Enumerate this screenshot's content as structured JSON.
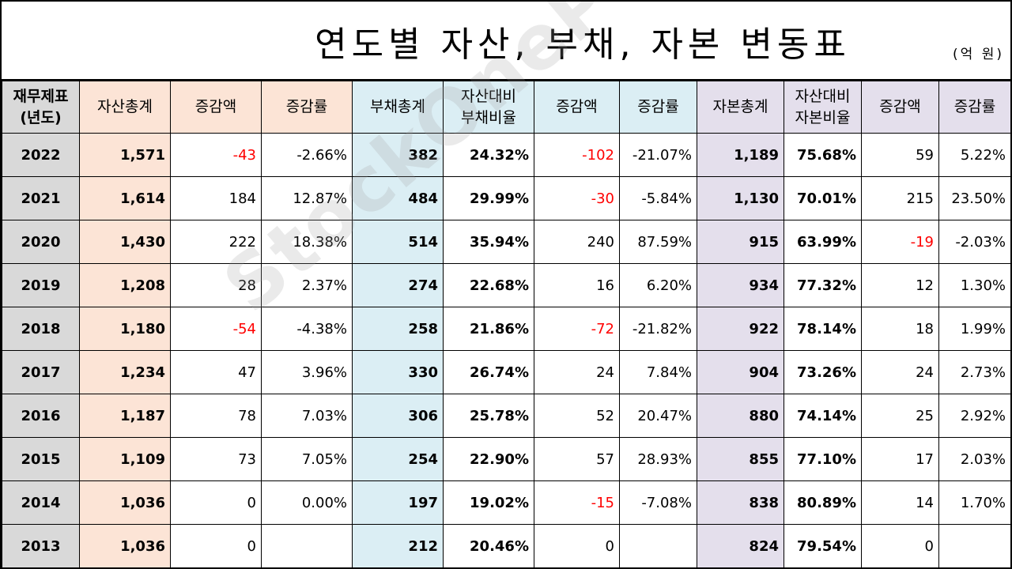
{
  "title": "연도별 자산, 부채, 자본 변동표",
  "unit": "(억 원)",
  "watermark": "StockOnePunch",
  "headers": {
    "year": "재무제표\n(년도)",
    "asset_total": "자산총계",
    "asset_change": "증감액",
    "asset_rate": "증감률",
    "liab_total": "부채총계",
    "liab_ratio": "자산대비\n부채비율",
    "liab_change": "증감액",
    "liab_rate": "증감률",
    "eq_total": "자본총계",
    "eq_ratio": "자산대비\n자본비율",
    "eq_change": "증감액",
    "eq_rate": "증감률"
  },
  "colors": {
    "asset": "#fce4d6",
    "liability": "#dbeef4",
    "equity": "#e4dfec",
    "year": "#d9d9d9",
    "negative": "#ff0000"
  },
  "rows": [
    {
      "year": "2022",
      "asset_total": "1,571",
      "asset_change": "-43",
      "asset_rate": "-2.66%",
      "liab_total": "382",
      "liab_ratio": "24.32%",
      "liab_change": "-102",
      "liab_rate": "-21.07%",
      "eq_total": "1,189",
      "eq_ratio": "75.68%",
      "eq_change": "59",
      "eq_rate": "5.22%"
    },
    {
      "year": "2021",
      "asset_total": "1,614",
      "asset_change": "184",
      "asset_rate": "12.87%",
      "liab_total": "484",
      "liab_ratio": "29.99%",
      "liab_change": "-30",
      "liab_rate": "-5.84%",
      "eq_total": "1,130",
      "eq_ratio": "70.01%",
      "eq_change": "215",
      "eq_rate": "23.50%"
    },
    {
      "year": "2020",
      "asset_total": "1,430",
      "asset_change": "222",
      "asset_rate": "18.38%",
      "liab_total": "514",
      "liab_ratio": "35.94%",
      "liab_change": "240",
      "liab_rate": "87.59%",
      "eq_total": "915",
      "eq_ratio": "63.99%",
      "eq_change": "-19",
      "eq_rate": "-2.03%"
    },
    {
      "year": "2019",
      "asset_total": "1,208",
      "asset_change": "28",
      "asset_rate": "2.37%",
      "liab_total": "274",
      "liab_ratio": "22.68%",
      "liab_change": "16",
      "liab_rate": "6.20%",
      "eq_total": "934",
      "eq_ratio": "77.32%",
      "eq_change": "12",
      "eq_rate": "1.30%"
    },
    {
      "year": "2018",
      "asset_total": "1,180",
      "asset_change": "-54",
      "asset_rate": "-4.38%",
      "liab_total": "258",
      "liab_ratio": "21.86%",
      "liab_change": "-72",
      "liab_rate": "-21.82%",
      "eq_total": "922",
      "eq_ratio": "78.14%",
      "eq_change": "18",
      "eq_rate": "1.99%"
    },
    {
      "year": "2017",
      "asset_total": "1,234",
      "asset_change": "47",
      "asset_rate": "3.96%",
      "liab_total": "330",
      "liab_ratio": "26.74%",
      "liab_change": "24",
      "liab_rate": "7.84%",
      "eq_total": "904",
      "eq_ratio": "73.26%",
      "eq_change": "24",
      "eq_rate": "2.73%"
    },
    {
      "year": "2016",
      "asset_total": "1,187",
      "asset_change": "78",
      "asset_rate": "7.03%",
      "liab_total": "306",
      "liab_ratio": "25.78%",
      "liab_change": "52",
      "liab_rate": "20.47%",
      "eq_total": "880",
      "eq_ratio": "74.14%",
      "eq_change": "25",
      "eq_rate": "2.92%"
    },
    {
      "year": "2015",
      "asset_total": "1,109",
      "asset_change": "73",
      "asset_rate": "7.05%",
      "liab_total": "254",
      "liab_ratio": "22.90%",
      "liab_change": "57",
      "liab_rate": "28.93%",
      "eq_total": "855",
      "eq_ratio": "77.10%",
      "eq_change": "17",
      "eq_rate": "2.03%"
    },
    {
      "year": "2014",
      "asset_total": "1,036",
      "asset_change": "0",
      "asset_rate": "0.00%",
      "liab_total": "197",
      "liab_ratio": "19.02%",
      "liab_change": "-15",
      "liab_rate": "-7.08%",
      "eq_total": "838",
      "eq_ratio": "80.89%",
      "eq_change": "14",
      "eq_rate": "1.70%"
    },
    {
      "year": "2013",
      "asset_total": "1,036",
      "asset_change": "0",
      "asset_rate": "",
      "liab_total": "212",
      "liab_ratio": "20.46%",
      "liab_change": "0",
      "liab_rate": "",
      "eq_total": "824",
      "eq_ratio": "79.54%",
      "eq_change": "0",
      "eq_rate": ""
    }
  ]
}
